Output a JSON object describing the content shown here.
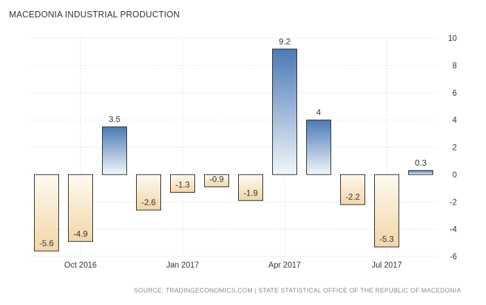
{
  "title": "MACEDONIA INDUSTRIAL PRODUCTION",
  "source": "SOURCE: TRADINGECONOMICS.COM | STATE STATISTICAL OFFICE OF THE REPUBLIC OF MACEDONIA",
  "colors": {
    "positive_top": "#4a7ab5",
    "positive_bottom": "#f2f6fb",
    "negative_top": "#fffaf0",
    "negative_bottom": "#f2d6a8",
    "grid": "#d6d6d6",
    "text": "#333333"
  },
  "chart_data": {
    "type": "bar",
    "title": "MACEDONIA INDUSTRIAL PRODUCTION",
    "categories": [
      "Sep 2016",
      "Oct 2016",
      "Nov 2016",
      "Dec 2016",
      "Jan 2017",
      "Feb 2017",
      "Mar 2017",
      "Apr 2017",
      "May 2017",
      "Jun 2017",
      "Jul 2017",
      "Aug 2017"
    ],
    "values": [
      -5.6,
      -4.9,
      3.5,
      -2.6,
      -1.3,
      -0.9,
      -1.9,
      9.2,
      4.0,
      -2.2,
      -5.3,
      0.3
    ],
    "value_labels": [
      "-5.6",
      "-4.9",
      "3.5",
      "-2.6",
      "-1.3",
      "-0.9",
      "-1.9",
      "9.2",
      "4",
      "-2.2",
      "-5.3",
      "0.3"
    ],
    "x_tick_labels": [
      "Oct 2016",
      "Jan 2017",
      "Apr 2017",
      "Jul 2017"
    ],
    "y_ticks": [
      10,
      8,
      6,
      4,
      2,
      0,
      -2,
      -4,
      -6
    ],
    "ylim": [
      -6,
      10
    ],
    "xlabel": "",
    "ylabel": "",
    "grid": true,
    "y_axis_position": "right"
  }
}
